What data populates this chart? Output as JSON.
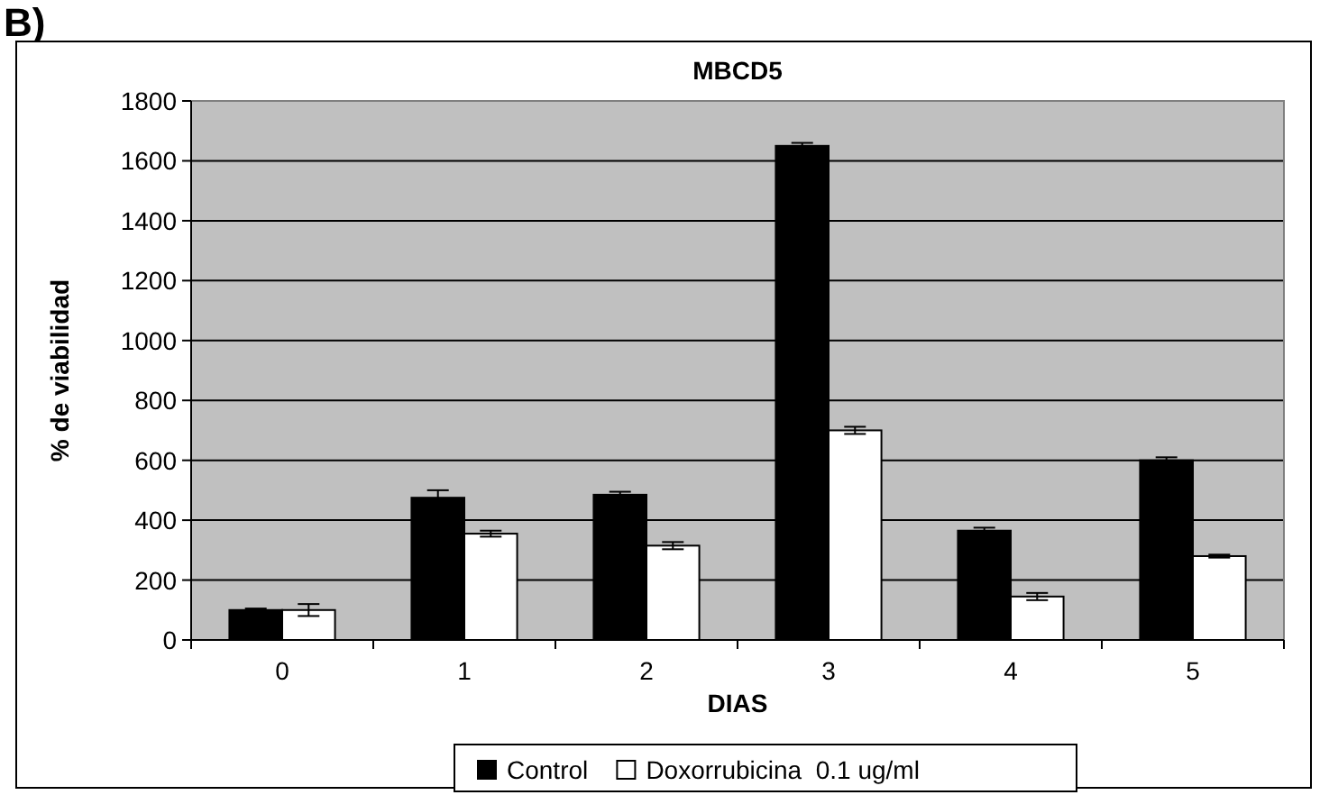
{
  "chart_data": {
    "type": "bar",
    "title": "MBCD5",
    "xlabel": "DIAS",
    "ylabel": "% de viabilidad",
    "annotations": [
      "B)"
    ],
    "categories": [
      "0",
      "1",
      "2",
      "3",
      "4",
      "5"
    ],
    "series": [
      {
        "name": "Control",
        "color": "#000000",
        "values": [
          100,
          475,
          485,
          1650,
          365,
          600
        ],
        "errors": [
          5,
          25,
          10,
          10,
          10,
          10
        ]
      },
      {
        "name": "Doxorrubicina  0.1 ug/ml",
        "color": "#ffffff",
        "values": [
          100,
          355,
          315,
          700,
          145,
          280
        ],
        "errors": [
          20,
          10,
          12,
          12,
          12,
          5
        ]
      }
    ],
    "ylim": [
      0,
      1800
    ],
    "yticks": [
      0,
      200,
      400,
      600,
      800,
      1000,
      1200,
      1400,
      1600,
      1800
    ],
    "grid": "y",
    "legend": "bottom"
  }
}
